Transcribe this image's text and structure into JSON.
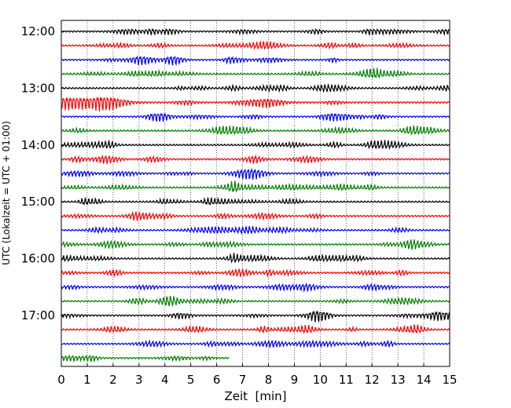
{
  "chart_data": {
    "type": "line",
    "title": "",
    "xlabel": "Zeit  [min]",
    "ylabel": "UTC (Lokalzeit = UTC + 01:00)",
    "xlim": [
      0,
      15
    ],
    "x_ticks": [
      0,
      1,
      2,
      3,
      4,
      5,
      6,
      7,
      8,
      9,
      10,
      11,
      12,
      13,
      14,
      15
    ],
    "x_tick_labels": [
      "0",
      "1",
      "2",
      "3",
      "4",
      "5",
      "6",
      "7",
      "8",
      "9",
      "10",
      "11",
      "12",
      "13",
      "14",
      "15"
    ],
    "y_ticks": [
      "12:00",
      "13:00",
      "14:00",
      "15:00",
      "16:00",
      "17:00"
    ],
    "grid": "vertical-dotted",
    "trace_minutes": 15,
    "colors": [
      "#000000",
      "#ff0000",
      "#0000ff",
      "#008000"
    ],
    "traces": [
      {
        "start": "12:00",
        "end_min": 15
      },
      {
        "start": "12:15",
        "end_min": 15
      },
      {
        "start": "12:30",
        "end_min": 15
      },
      {
        "start": "12:45",
        "end_min": 15
      },
      {
        "start": "13:00",
        "end_min": 15
      },
      {
        "start": "13:15",
        "end_min": 15
      },
      {
        "start": "13:30",
        "end_min": 15
      },
      {
        "start": "13:45",
        "end_min": 15
      },
      {
        "start": "14:00",
        "end_min": 15
      },
      {
        "start": "14:15",
        "end_min": 15
      },
      {
        "start": "14:30",
        "end_min": 15
      },
      {
        "start": "14:45",
        "end_min": 15
      },
      {
        "start": "15:00",
        "end_min": 15
      },
      {
        "start": "15:15",
        "end_min": 15
      },
      {
        "start": "15:30",
        "end_min": 15
      },
      {
        "start": "15:45",
        "end_min": 15
      },
      {
        "start": "16:00",
        "end_min": 15
      },
      {
        "start": "16:15",
        "end_min": 15
      },
      {
        "start": "16:30",
        "end_min": 15
      },
      {
        "start": "16:45",
        "end_min": 15
      },
      {
        "start": "17:00",
        "end_min": 15
      },
      {
        "start": "17:15",
        "end_min": 15
      },
      {
        "start": "17:30",
        "end_min": 15
      },
      {
        "start": "17:45",
        "end_min": 6.5
      }
    ]
  }
}
